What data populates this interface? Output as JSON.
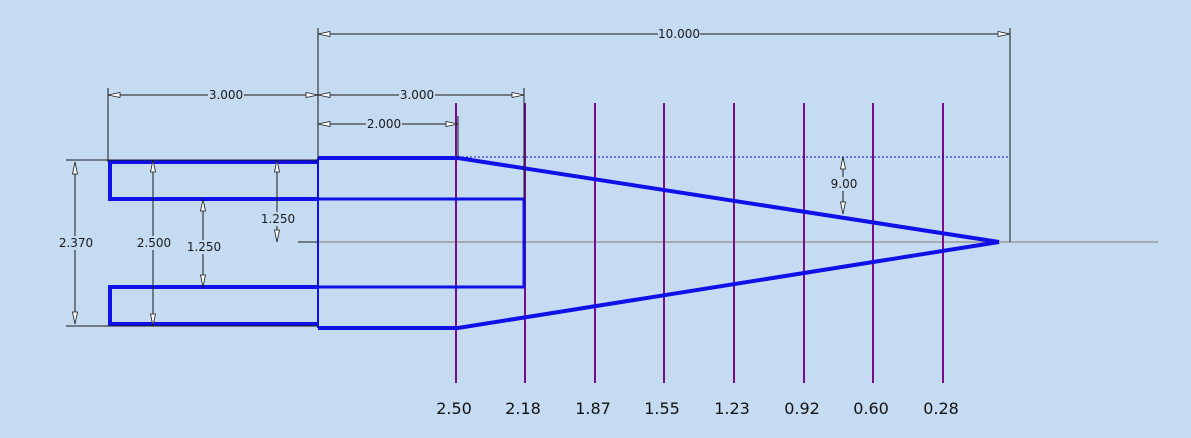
{
  "colors": {
    "background": "#c5dbf2",
    "profile": "#1010e8",
    "station": "#7a0a8c",
    "centerline": "#9a9a9a",
    "dimension": "#1a1a1a"
  },
  "dimensions": {
    "overall_length": "10.000",
    "left_length": "3.000",
    "mid_length": "3.000",
    "shoulder_length": "2.000",
    "height_outer": "2.370",
    "height_inner": "2.500",
    "offset_upper": "1.250",
    "offset_lower": "1.250",
    "angle": "9.00"
  },
  "stations": [
    "2.50",
    "2.18",
    "1.87",
    "1.55",
    "1.23",
    "0.92",
    "0.60",
    "0.28"
  ]
}
